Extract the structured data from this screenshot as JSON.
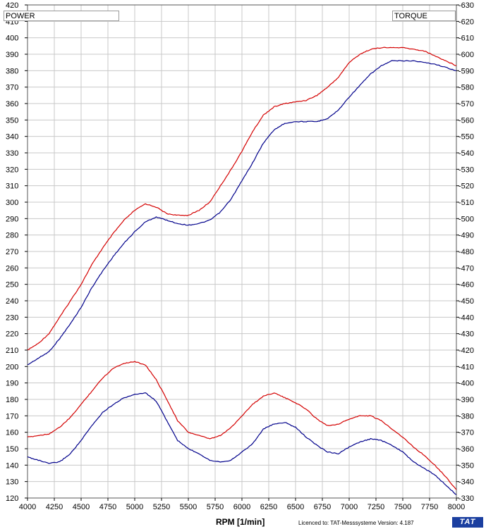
{
  "chart_data": {
    "type": "line",
    "title": "",
    "xlabel": "RPM  [1/min]",
    "left_axis_label": "POWER",
    "right_axis_label": "TORQUE",
    "xlim": [
      4000,
      8000
    ],
    "ylim_left": [
      120,
      420
    ],
    "ylim_right": [
      330,
      630
    ],
    "grid": true,
    "x_ticks": [
      4000,
      4250,
      4500,
      4750,
      5000,
      5250,
      5500,
      5750,
      6000,
      6250,
      6500,
      6750,
      7000,
      7250,
      7500,
      7750,
      8000
    ],
    "y_left_ticks": [
      120,
      130,
      140,
      150,
      160,
      170,
      180,
      190,
      200,
      210,
      220,
      230,
      240,
      250,
      260,
      270,
      280,
      290,
      300,
      310,
      320,
      330,
      340,
      350,
      360,
      370,
      380,
      390,
      400,
      410,
      420
    ],
    "y_right_ticks": [
      330,
      340,
      350,
      360,
      370,
      380,
      390,
      400,
      410,
      420,
      430,
      440,
      450,
      460,
      470,
      480,
      490,
      500,
      510,
      520,
      530,
      540,
      550,
      560,
      570,
      580,
      590,
      600,
      610,
      620,
      630
    ],
    "y_left_tick_labels": [
      "120",
      "130",
      "140",
      "150",
      "160",
      "170",
      "180",
      "190",
      "200",
      "210",
      "220",
      "230",
      "240",
      "250",
      "260",
      "270",
      "280",
      "290",
      "300",
      "310",
      "320",
      "330",
      "340",
      "350",
      "360",
      "370",
      "380",
      "390",
      "400",
      "410",
      "420"
    ],
    "y_right_tick_labels": [
      "-330",
      "-340",
      "-350",
      "-360",
      "-370",
      "-380",
      "-390",
      "-400",
      "-410",
      "-420",
      "-430",
      "-440",
      "-450",
      "-460",
      "-470",
      "-480",
      "-490",
      "-500",
      "-510",
      "-520",
      "-530",
      "-540",
      "-550",
      "-560",
      "-570",
      "-580",
      "-590",
      "-600",
      "-610",
      "-620",
      "-630"
    ],
    "series": [
      {
        "role": "power",
        "color": "#d40000",
        "axis": "left",
        "x": [
          4000,
          4100,
          4200,
          4300,
          4400,
          4500,
          4600,
          4700,
          4800,
          4900,
          5000,
          5100,
          5200,
          5300,
          5400,
          5500,
          5600,
          5700,
          5800,
          5900,
          6000,
          6100,
          6200,
          6300,
          6400,
          6500,
          6600,
          6700,
          6800,
          6900,
          7000,
          7100,
          7200,
          7300,
          7400,
          7500,
          7600,
          7700,
          7800,
          7900,
          8000
        ],
        "y": [
          210,
          214,
          220,
          230,
          240,
          250,
          262,
          272,
          281,
          289,
          295,
          299,
          297,
          293,
          292,
          292,
          295,
          300,
          310,
          320,
          331,
          343,
          353,
          358,
          360,
          361,
          362,
          365,
          370,
          376,
          385,
          390,
          393,
          394,
          394,
          394,
          393,
          392,
          389,
          386,
          383
        ]
      },
      {
        "role": "power",
        "color": "#00008b",
        "axis": "left",
        "x": [
          4000,
          4100,
          4200,
          4300,
          4400,
          4500,
          4600,
          4700,
          4800,
          4900,
          5000,
          5100,
          5200,
          5300,
          5400,
          5500,
          5600,
          5700,
          5800,
          5900,
          6000,
          6100,
          6200,
          6300,
          6400,
          6500,
          6600,
          6700,
          6800,
          6900,
          7000,
          7100,
          7200,
          7300,
          7400,
          7500,
          7600,
          7700,
          7800,
          7900,
          8000
        ],
        "y": [
          201,
          205,
          209,
          217,
          226,
          236,
          248,
          258,
          267,
          275,
          282,
          288,
          291,
          289,
          287,
          286,
          287,
          289,
          294,
          302,
          313,
          324,
          336,
          344,
          348,
          349,
          349,
          349,
          351,
          356,
          364,
          371,
          378,
          383,
          386,
          386,
          386,
          385,
          384,
          382,
          380
        ]
      },
      {
        "role": "torque",
        "color": "#d40000",
        "axis": "left",
        "x": [
          4000,
          4100,
          4200,
          4300,
          4400,
          4500,
          4600,
          4700,
          4800,
          4900,
          5000,
          5100,
          5200,
          5300,
          5400,
          5500,
          5600,
          5700,
          5800,
          5900,
          6000,
          6100,
          6200,
          6300,
          6400,
          6500,
          6600,
          6700,
          6800,
          6900,
          7000,
          7100,
          7200,
          7300,
          7400,
          7500,
          7600,
          7700,
          7800,
          7900,
          8000
        ],
        "y": [
          157,
          158,
          159,
          163,
          169,
          177,
          185,
          193,
          199,
          202,
          203,
          201,
          192,
          180,
          167,
          160,
          158,
          156,
          158,
          163,
          170,
          177,
          182,
          184,
          181,
          178,
          174,
          168,
          164,
          165,
          168,
          170,
          170,
          167,
          162,
          157,
          151,
          146,
          140,
          133,
          125
        ]
      },
      {
        "role": "torque",
        "color": "#00008b",
        "axis": "left",
        "x": [
          4000,
          4100,
          4200,
          4300,
          4400,
          4500,
          4600,
          4700,
          4800,
          4900,
          5000,
          5100,
          5200,
          5300,
          5400,
          5500,
          5600,
          5700,
          5800,
          5900,
          6000,
          6100,
          6200,
          6300,
          6400,
          6500,
          6600,
          6700,
          6800,
          6900,
          7000,
          7100,
          7200,
          7300,
          7400,
          7500,
          7600,
          7700,
          7800,
          7900,
          8000
        ],
        "y": [
          145,
          143,
          141,
          142,
          147,
          155,
          164,
          172,
          177,
          181,
          183,
          184,
          179,
          167,
          155,
          150,
          147,
          143,
          142,
          143,
          148,
          153,
          162,
          165,
          166,
          163,
          157,
          152,
          148,
          147,
          151,
          154,
          156,
          155,
          152,
          148,
          142,
          138,
          134,
          128,
          122
        ]
      }
    ]
  },
  "legend": {
    "power_label": "POWER",
    "torque_label": "TORQUE"
  },
  "footer": {
    "licence_text": "Licenced to: TAT-Messsysteme    Version: 4.187",
    "brand": "TAT"
  }
}
